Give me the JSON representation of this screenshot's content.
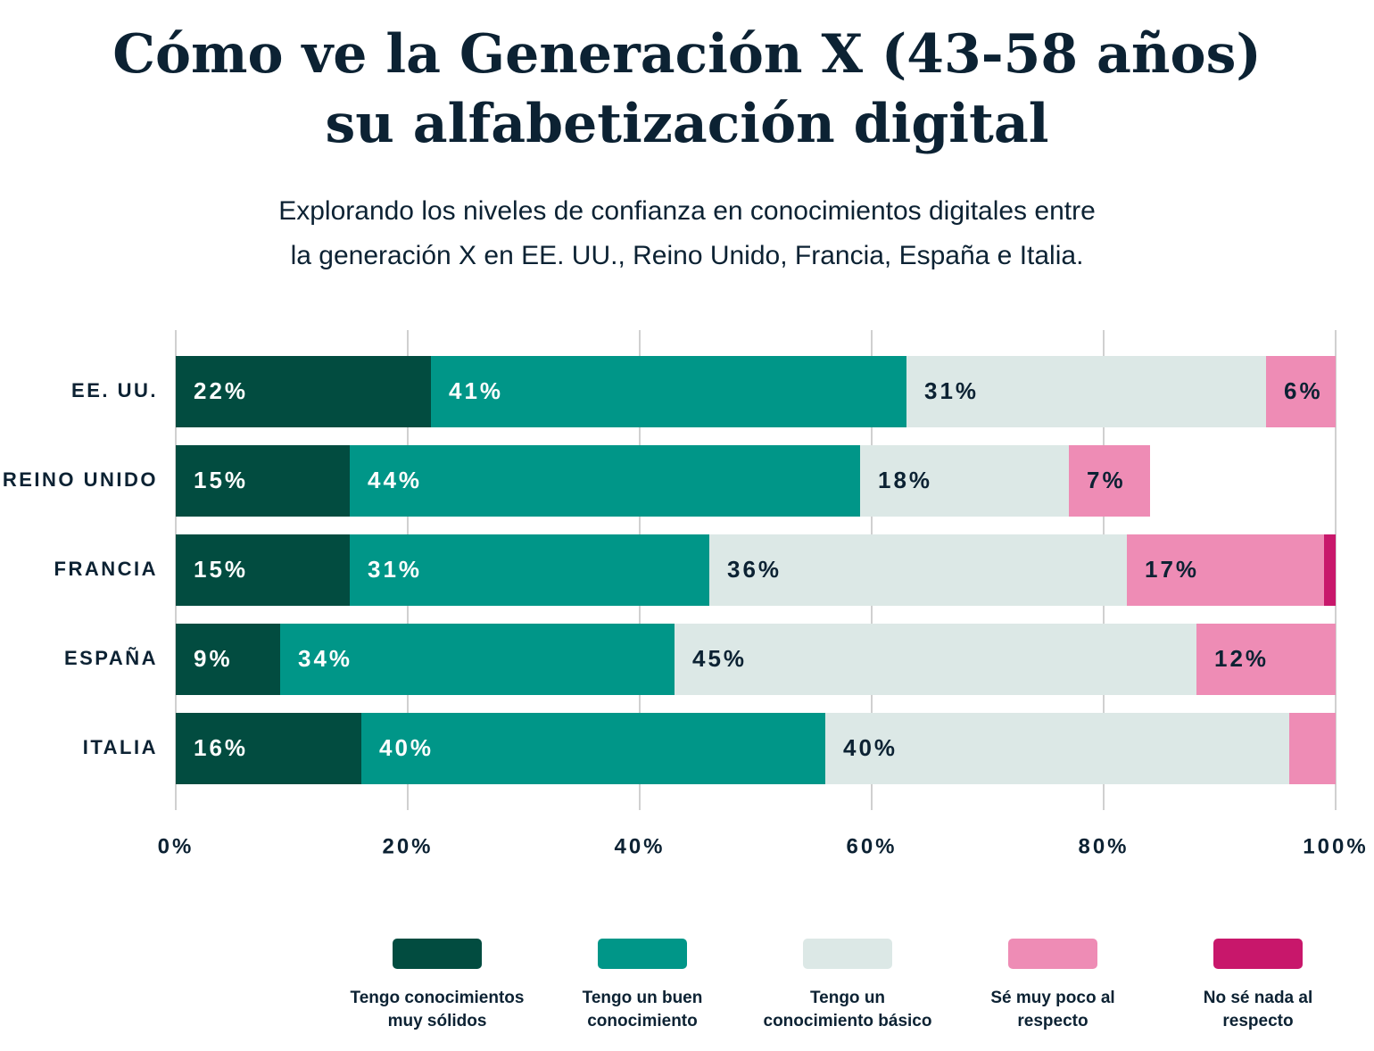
{
  "chart_data": {
    "type": "stacked-bar-horizontal",
    "title": "Cómo ve la Generación X (43-58 años)\nsu alfabetización digital",
    "subtitle": "Explorando los niveles de confianza en conocimientos digitales entre\nla generación X en EE. UU., Reino Unido, Francia, España e Italia.",
    "categories": [
      "EE. UU.",
      "REINO UNIDO",
      "FRANCIA",
      "ESPAÑA",
      "ITALIA"
    ],
    "series": [
      {
        "name": "Tengo conocimientos\nmuy sólidos",
        "color": "#024c40",
        "values": [
          22,
          15,
          15,
          9,
          16
        ],
        "value_labels": [
          "22%",
          "15%",
          "15%",
          "9%",
          "16%"
        ]
      },
      {
        "name": "Tengo un buen\nconocimiento",
        "color": "#009688",
        "values": [
          41,
          44,
          31,
          34,
          40
        ],
        "value_labels": [
          "41%",
          "44%",
          "31%",
          "34%",
          "40%"
        ]
      },
      {
        "name": "Tengo un\nconocimiento básico",
        "color": "#dce8e6",
        "values": [
          31,
          18,
          36,
          45,
          40
        ],
        "value_labels": [
          "31%",
          "18%",
          "36%",
          "45%",
          "40%"
        ]
      },
      {
        "name": "Sé muy poco al\nrespecto",
        "color": "#ee8cb5",
        "values": [
          6,
          7,
          17,
          12,
          4
        ],
        "value_labels": [
          "6%",
          "7%",
          "17%",
          "12%",
          null
        ]
      },
      {
        "name": "No sé nada al\nrespecto",
        "color": "#c8176b",
        "values": [
          0,
          0,
          1,
          0,
          0
        ],
        "value_labels": [
          null,
          null,
          null,
          null,
          null
        ]
      }
    ],
    "xlim": [
      0,
      100
    ],
    "xticks": [
      {
        "value": 0,
        "label": "0%"
      },
      {
        "value": 20,
        "label": "20%"
      },
      {
        "value": 40,
        "label": "40%"
      },
      {
        "value": 60,
        "label": "60%"
      },
      {
        "value": 80,
        "label": "80%"
      },
      {
        "value": 100,
        "label": "100%"
      }
    ],
    "grid": true
  }
}
